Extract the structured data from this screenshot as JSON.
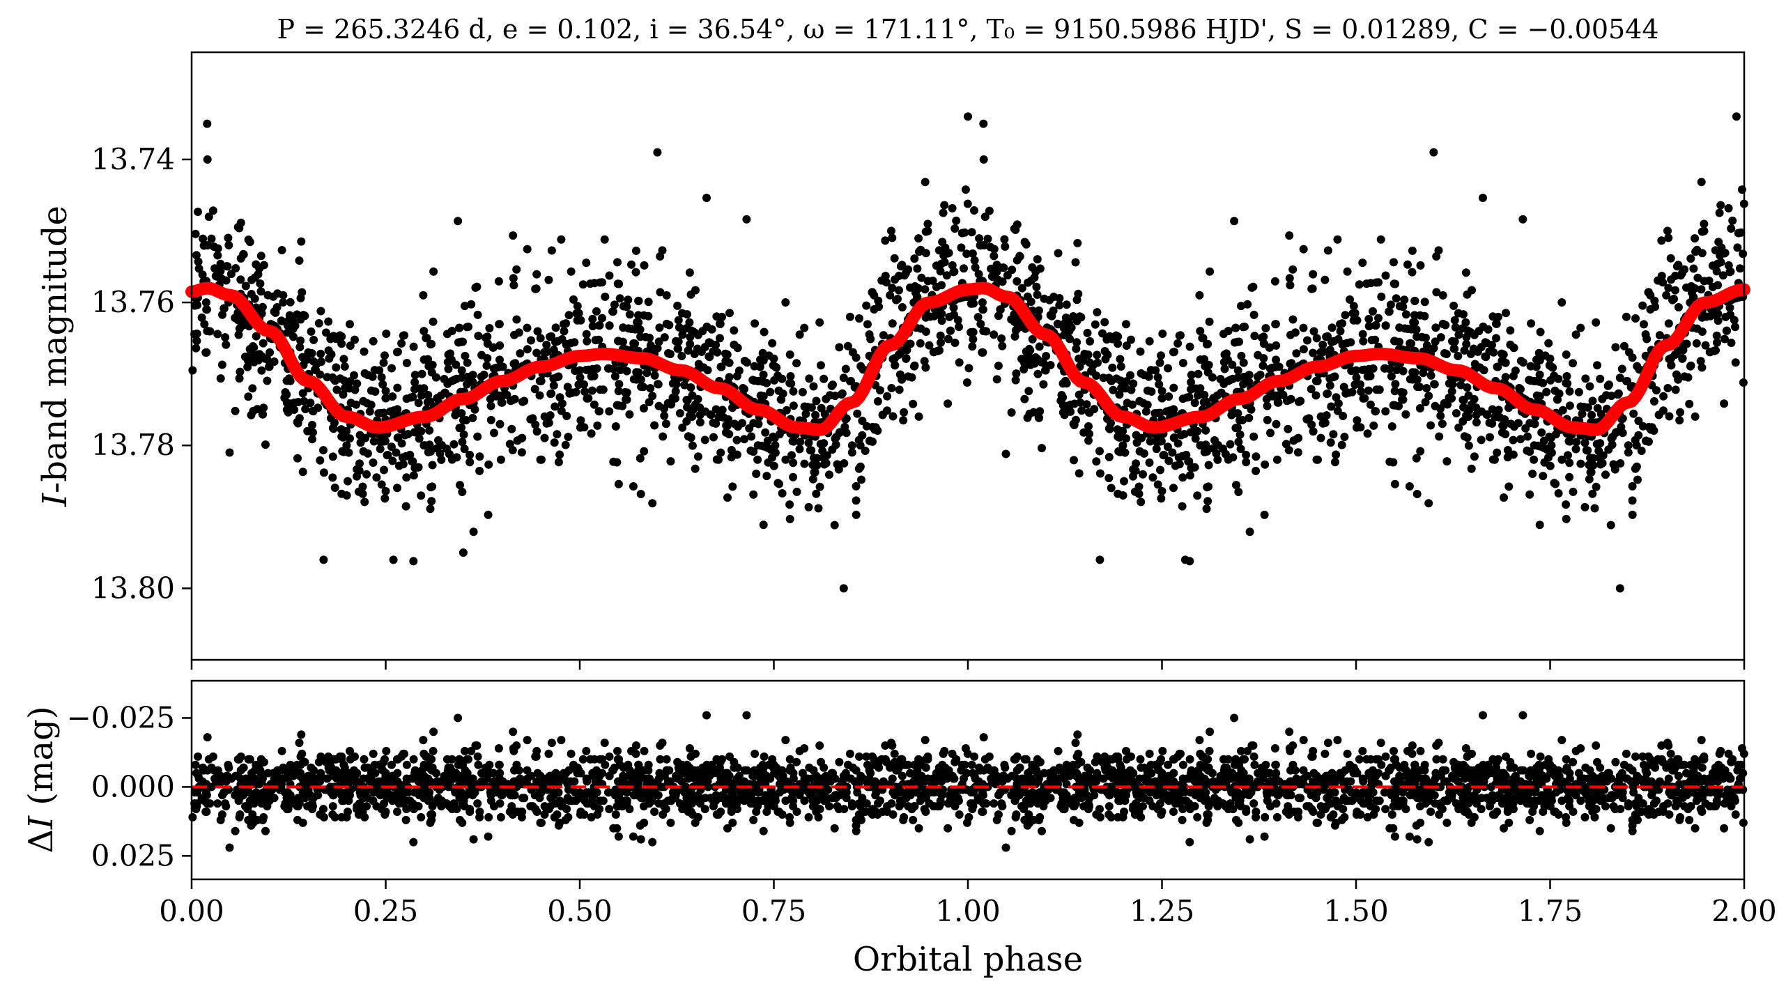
{
  "title": "P = 265.3246 d, e = 0.102, i = 36.54°, ω = 171.11°, T₀ = 9150.5986 HJD', S = 0.01289, C = −0.00544",
  "colors": {
    "points": "#000000",
    "model": "#ff0000",
    "residual_zero": "#ff0000"
  },
  "chart_data": [
    {
      "type": "scatter",
      "panel": "light-curve",
      "xlabel": "",
      "ylabel": "I-band magnitude",
      "xlim": [
        0.0,
        2.0
      ],
      "ylim": [
        13.81,
        13.725
      ],
      "inverted_y": true,
      "yticks": [
        "13.74",
        "13.76",
        "13.78",
        "13.80"
      ],
      "ytick_values": [
        13.74,
        13.76,
        13.78,
        13.8
      ],
      "xticks": [
        0.0,
        0.25,
        0.5,
        0.75,
        1.0,
        1.25,
        1.5,
        1.75,
        2.0
      ],
      "model": {
        "x": [
          0.0,
          0.02,
          0.05,
          0.1,
          0.15,
          0.2,
          0.24,
          0.3,
          0.35,
          0.4,
          0.45,
          0.5,
          0.53,
          0.58,
          0.63,
          0.68,
          0.73,
          0.78,
          0.81,
          0.85,
          0.9,
          0.95,
          1.0,
          1.02,
          1.05,
          1.1,
          1.15,
          1.2,
          1.24,
          1.3,
          1.35,
          1.4,
          1.45,
          1.5,
          1.53,
          1.58,
          1.63,
          1.68,
          1.73,
          1.78,
          1.81,
          1.85,
          1.9,
          1.95,
          2.0
        ],
        "y": [
          13.7585,
          13.758,
          13.759,
          13.764,
          13.771,
          13.776,
          13.7775,
          13.776,
          13.7735,
          13.771,
          13.769,
          13.7675,
          13.7672,
          13.7678,
          13.7695,
          13.772,
          13.775,
          13.7775,
          13.7778,
          13.774,
          13.766,
          13.76,
          13.7582,
          13.758,
          13.7592,
          13.7645,
          13.7712,
          13.776,
          13.7775,
          13.776,
          13.7735,
          13.771,
          13.769,
          13.7675,
          13.7672,
          13.7678,
          13.7695,
          13.772,
          13.775,
          13.7775,
          13.7778,
          13.774,
          13.766,
          13.76,
          13.7582
        ]
      },
      "scatter_sigma": 0.0075,
      "points_per_cycle": 1500,
      "outliers": [
        {
          "x": 0.02,
          "y": 13.735
        },
        {
          "x": 1.0,
          "y": 13.734
        },
        {
          "x": 1.02,
          "y": 13.735
        },
        {
          "x": 1.99,
          "y": 13.734
        },
        {
          "x": 0.6,
          "y": 13.739
        },
        {
          "x": 1.6,
          "y": 13.739
        },
        {
          "x": 0.84,
          "y": 13.8
        },
        {
          "x": 1.84,
          "y": 13.8
        },
        {
          "x": 0.17,
          "y": 13.796
        },
        {
          "x": 0.26,
          "y": 13.796
        },
        {
          "x": 0.35,
          "y": 13.795
        },
        {
          "x": 1.17,
          "y": 13.796
        },
        {
          "x": 1.28,
          "y": 13.796
        }
      ]
    },
    {
      "type": "scatter",
      "panel": "residuals",
      "xlabel": "Orbital phase",
      "ylabel": "ΔI (mag)",
      "xlim": [
        0.0,
        2.0
      ],
      "ylim": [
        0.0335,
        -0.0385
      ],
      "inverted_y": true,
      "yticks": [
        "−0.025",
        "0.000",
        "0.025"
      ],
      "ytick_values": [
        -0.025,
        0.0,
        0.025
      ],
      "xticks": [
        "0.00",
        "0.25",
        "0.50",
        "0.75",
        "1.00",
        "1.25",
        "1.50",
        "1.75",
        "2.00"
      ],
      "xtick_values": [
        0.0,
        0.25,
        0.5,
        0.75,
        1.0,
        1.25,
        1.5,
        1.75,
        2.0
      ],
      "zero_line": 0.0,
      "scatter_sigma": 0.0075
    }
  ]
}
